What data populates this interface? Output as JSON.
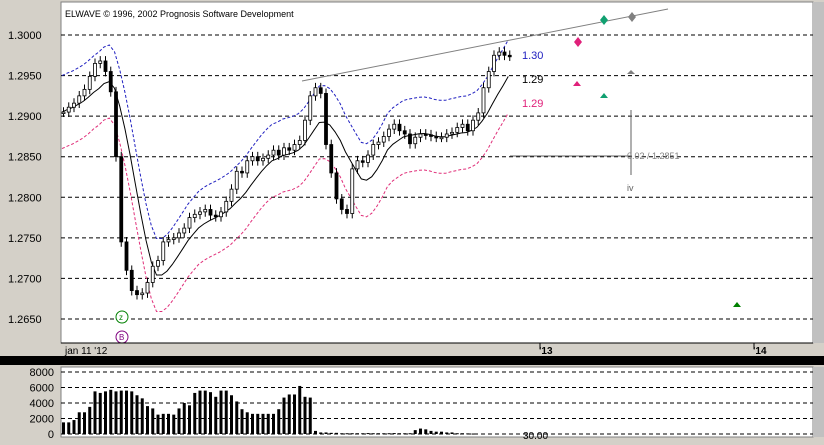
{
  "app": {
    "title": "ELWAVE © 1996, 2002 Prognosis Software Development"
  },
  "price_axis": {
    "ticks": [
      "1.3000",
      "1.2950",
      "1.2900",
      "1.2850",
      "1.2800",
      "1.2750",
      "1.2700",
      "1.2650"
    ]
  },
  "time_axis": {
    "labels": [
      "jan 11 '12",
      "'13",
      "'14"
    ]
  },
  "volume_axis": {
    "ticks": [
      "8000",
      "6000",
      "4000",
      "2000",
      "0"
    ]
  },
  "annotations": {
    "level_blue": "1.30",
    "level_black": "1.29",
    "level_pink": "1.29",
    "target_readout": "0.02 / 1.2851",
    "wave_label": "iv",
    "wave_z": "z",
    "wave_b": "B",
    "volume_readout": "30.00"
  },
  "colors": {
    "background": "#ffffff",
    "frame": "#d4d0c8",
    "candle": "#000000",
    "upper_band": "#2020c0",
    "lower_band": "#e0307a",
    "trend_line": "#808080",
    "marker_green": "#10a070",
    "marker_gray": "#808080",
    "marker_pink": "#e0207a",
    "marker_darkgreen": "#008000",
    "volume_bar": "#000000"
  },
  "chart_data": {
    "type": "line",
    "ylabel": "",
    "ylim": [
      1.262,
      1.3035
    ],
    "series": [
      {
        "values": [
          1.2905,
          1.2911,
          1.2916,
          1.2925,
          1.2933,
          1.2949,
          1.2965,
          1.2968,
          1.2955,
          1.293,
          1.285,
          1.2745,
          1.271,
          1.2685,
          1.268,
          1.2682,
          1.2695,
          1.2715,
          1.2722,
          1.2745,
          1.2748,
          1.275,
          1.2756,
          1.2762,
          1.2775,
          1.2779,
          1.2782,
          1.2785,
          1.2778,
          1.2776,
          1.2782,
          1.2795,
          1.281,
          1.2832,
          1.283,
          1.2845,
          1.285,
          1.2845,
          1.2848,
          1.2852,
          1.2858,
          1.2852,
          1.2861,
          1.2858,
          1.2865,
          1.287,
          1.2895,
          1.2925,
          1.2935,
          1.2928,
          1.2865,
          1.283,
          1.2798,
          1.2785,
          1.278,
          1.2835,
          1.2845,
          1.2843,
          1.2852,
          1.2865,
          1.2868,
          1.2875,
          1.2884,
          1.289,
          1.2882,
          1.2878,
          1.2866,
          1.2874,
          1.2878,
          1.2877,
          1.2875,
          1.2874,
          1.2874,
          1.2878,
          1.288,
          1.2886,
          1.289,
          1.2882,
          1.2895,
          1.2904,
          1.2935,
          1.2955,
          1.2975,
          1.2979,
          1.2975,
          1.2974
        ]
      }
    ],
    "volume": [
      1500,
      1500,
      1800,
      2800,
      2800,
      3500,
      5500,
      5300,
      5500,
      5700,
      5500,
      5600,
      5600,
      5500,
      5000,
      4600,
      3600,
      3300,
      2500,
      2600,
      2600,
      2500,
      3300,
      4000,
      3700,
      5300,
      5600,
      5600,
      5400,
      4800,
      5600,
      5600,
      5000,
      4200,
      3200,
      2800,
      2600,
      2600,
      2600,
      2600,
      2600,
      3200,
      4700,
      5100,
      5100,
      6200,
      4800,
      4700,
      400,
      200,
      200,
      150,
      150,
      100,
      100,
      100,
      100,
      100,
      120,
      100,
      100,
      100,
      100,
      120,
      100,
      100,
      100,
      500,
      700,
      600,
      400,
      300,
      300,
      200,
      200,
      100,
      100,
      80,
      60
    ]
  }
}
